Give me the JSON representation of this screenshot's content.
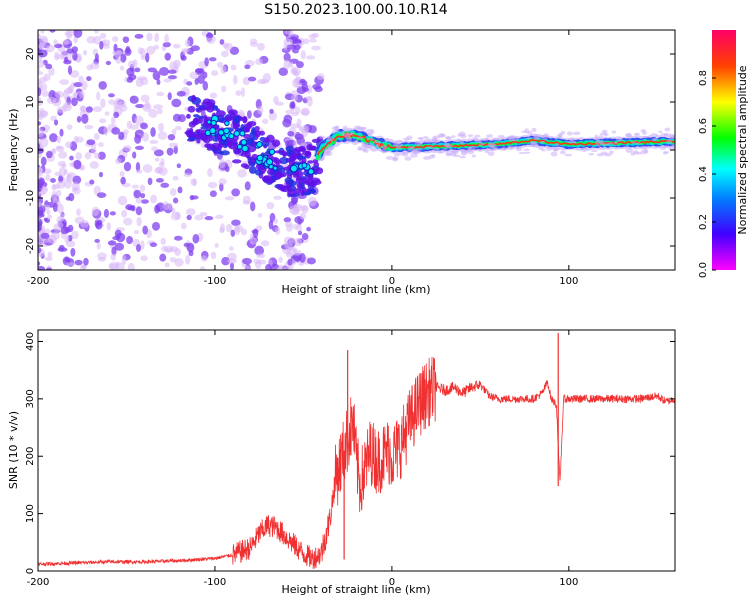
{
  "title": "S150.2023.100.00.10.R14",
  "chart_data": [
    {
      "type": "heatmap",
      "xlabel": "Height of straight line (km)",
      "ylabel": "Frequency (Hz)",
      "xlim": [
        -200,
        160
      ],
      "ylim": [
        -25,
        25
      ],
      "x_ticks": [
        -200,
        -100,
        0,
        100
      ],
      "y_ticks": [
        -20,
        -10,
        0,
        10,
        20
      ],
      "colorbar": {
        "label": "Normalized spectral amplitude",
        "range": [
          0,
          1
        ],
        "ticks": [
          0.0,
          0.2,
          0.4,
          0.6,
          0.8
        ],
        "tick_labels": [
          "0.0",
          "0.2",
          "0.4",
          "0.6",
          "0.8"
        ],
        "colormap": [
          "#FF00FF",
          "#0000FF",
          "#00FFFF",
          "#00FF00",
          "#FFFF00",
          "#FF0000",
          "#FF0066"
        ]
      },
      "band_center_hz": [
        {
          "x": -110,
          "f": 6
        },
        {
          "x": -95,
          "f": 4
        },
        {
          "x": -80,
          "f": 1
        },
        {
          "x": -65,
          "f": -3
        },
        {
          "x": -55,
          "f": -5
        },
        {
          "x": -45,
          "f": -4
        },
        {
          "x": -40,
          "f": 0
        },
        {
          "x": -30,
          "f": 3
        },
        {
          "x": -20,
          "f": 3
        },
        {
          "x": -10,
          "f": 1.5
        },
        {
          "x": 0,
          "f": 0.5
        },
        {
          "x": 30,
          "f": 0.8
        },
        {
          "x": 60,
          "f": 1.2
        },
        {
          "x": 80,
          "f": 2
        },
        {
          "x": 100,
          "f": 1.2
        },
        {
          "x": 160,
          "f": 1.8
        }
      ]
    },
    {
      "type": "line",
      "xlabel": "Height of straight line (km)",
      "ylabel": "SNR (10 * v/v)",
      "xlim": [
        -200,
        160
      ],
      "ylim": [
        0,
        420
      ],
      "x_ticks": [
        -200,
        -100,
        0,
        100
      ],
      "y_ticks": [
        0,
        100,
        200,
        300,
        400
      ],
      "color": "#F03030",
      "series": [
        {
          "x": [
            -200,
            -180,
            -160,
            -140,
            -120,
            -110,
            -100,
            -90,
            -80,
            -75,
            -70,
            -65,
            -60,
            -55,
            -50,
            -45,
            -40,
            -35,
            -32,
            -30,
            -28,
            -25,
            -22,
            -20,
            -18,
            -15,
            -12,
            -10,
            -8,
            -5,
            -2,
            0,
            5,
            10,
            15,
            20,
            25,
            30,
            35,
            40,
            45,
            50,
            55,
            60,
            70,
            80,
            85,
            88,
            90,
            93,
            95,
            97,
            100,
            110,
            120,
            130,
            140,
            150,
            155,
            160
          ],
          "y": [
            12,
            14,
            16,
            16,
            18,
            20,
            22,
            28,
            40,
            65,
            80,
            75,
            60,
            45,
            30,
            22,
            30,
            90,
            160,
            180,
            200,
            230,
            260,
            190,
            150,
            180,
            210,
            200,
            190,
            200,
            210,
            200,
            220,
            260,
            290,
            310,
            320,
            315,
            320,
            310,
            320,
            325,
            305,
            300,
            300,
            300,
            310,
            330,
            300,
            290,
            150,
            300,
            300,
            300,
            300,
            300,
            300,
            305,
            295,
            300
          ]
        }
      ],
      "spikes": [
        {
          "x": -25,
          "y": 385
        },
        {
          "x": -27,
          "y": 20
        },
        {
          "x": 94,
          "y": 415
        },
        {
          "x": 94,
          "y": 148
        }
      ]
    }
  ]
}
